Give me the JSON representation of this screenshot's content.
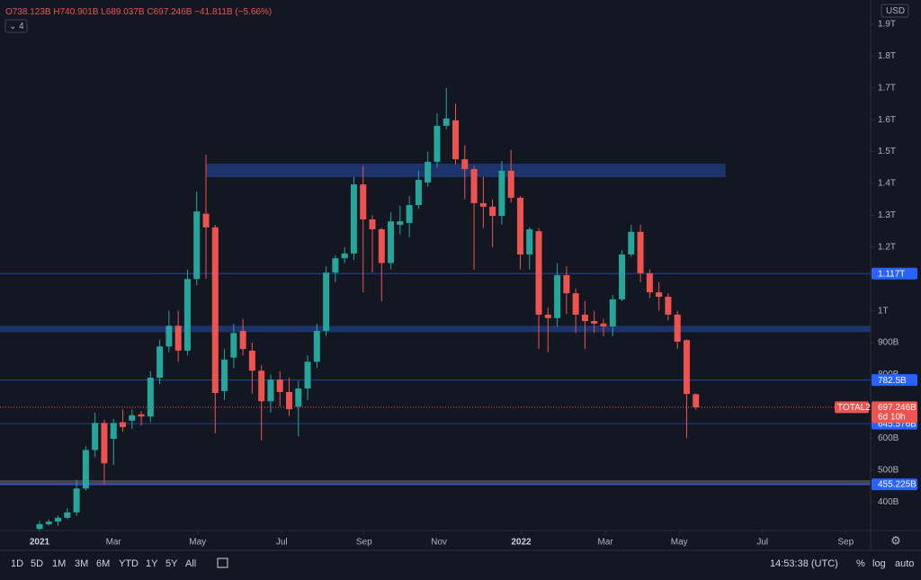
{
  "chart_data": {
    "type": "candlestick",
    "symbol": "TOTAL2",
    "header": {
      "open": "O738.123B",
      "high": "H740.901B",
      "low": "L689.037B",
      "close": "C697.246B",
      "change": "−41.811B (−5.66%)",
      "indicators": "4"
    },
    "currency": "USD",
    "up_color": "#26a69a",
    "down_color": "#ef5350",
    "open": [
      315,
      330,
      338,
      350,
      367,
      442,
      563,
      648,
      598,
      650,
      655,
      675,
      668,
      790,
      888,
      953,
      875,
      1100,
      1305,
      1262,
      748,
      853,
      937,
      875,
      812,
      716,
      784,
      745,
      699,
      756,
      840,
      937,
      1120,
      1165,
      1180,
      1397,
      1287,
      1256,
      1150,
      1270,
      1276,
      1332,
      1403,
      1468,
      1581,
      1598,
      1476,
      1445,
      1338,
      1327,
      1298,
      1440,
      1355,
      1177,
      1250,
      988,
      977,
      1112,
      1055,
      988,
      968,
      960,
      951,
      1036,
      1177,
      1248,
      1118,
      1058,
      1044,
      988,
      908,
      738.123
    ],
    "high": [
      340,
      345,
      357,
      380,
      470,
      575,
      680,
      658,
      660,
      690,
      690,
      685,
      810,
      910,
      1000,
      1000,
      1130,
      1375,
      1490,
      1270,
      880,
      960,
      975,
      900,
      830,
      800,
      810,
      790,
      780,
      860,
      960,
      1140,
      1175,
      1200,
      1420,
      1455,
      1300,
      1260,
      1310,
      1330,
      1360,
      1440,
      1500,
      1620,
      1700,
      1650,
      1520,
      1455,
      1420,
      1350,
      1470,
      1505,
      1360,
      1262,
      1260,
      1010,
      1150,
      1140,
      1070,
      1030,
      1000,
      975,
      1050,
      1190,
      1270,
      1270,
      1130,
      1090,
      1055,
      1000,
      910,
      740.901
    ],
    "low": [
      310,
      325,
      325,
      345,
      355,
      436,
      540,
      456,
      515,
      620,
      630,
      640,
      650,
      770,
      870,
      840,
      860,
      1080,
      1100,
      615,
      720,
      820,
      860,
      740,
      592,
      680,
      700,
      670,
      606,
      720,
      820,
      920,
      1090,
      1150,
      1160,
      1058,
      1120,
      1030,
      1130,
      1240,
      1230,
      1320,
      1390,
      1450,
      1570,
      1460,
      1350,
      1129,
      1260,
      1200,
      1270,
      1340,
      1130,
      1130,
      880,
      870,
      950,
      990,
      930,
      880,
      930,
      920,
      920,
      1030,
      1170,
      1090,
      1040,
      1000,
      970,
      880,
      600,
      689.037
    ],
    "close": [
      330,
      338,
      350,
      367,
      442,
      563,
      648,
      521,
      648,
      635,
      672,
      668,
      790,
      888,
      953,
      875,
      1100,
      1312,
      1262,
      742,
      847,
      930,
      880,
      812,
      716,
      784,
      745,
      691,
      756,
      840,
      937,
      1120,
      1165,
      1180,
      1397,
      1287,
      1256,
      1150,
      1281,
      1281,
      1332,
      1411,
      1468,
      1581,
      1604,
      1476,
      1445,
      1338,
      1327,
      1298,
      1440,
      1355,
      1177,
      1256,
      988,
      977,
      1112,
      1055,
      988,
      968,
      960,
      951,
      1036,
      1177,
      1248,
      1118,
      1058,
      1044,
      988,
      903,
      739,
      697.246
    ],
    "xlim": [
      -4.28,
      89.9
    ],
    "xticks": [
      {
        "value": 0,
        "label": "2021"
      },
      {
        "value": 8.0,
        "label": "Mar"
      },
      {
        "value": 17.1,
        "label": "May"
      },
      {
        "value": 26.2,
        "label": "Jul"
      },
      {
        "value": 35.1,
        "label": "Sep"
      },
      {
        "value": 43.2,
        "label": "Nov"
      },
      {
        "value": 52.1,
        "label": "2022"
      },
      {
        "value": 61.2,
        "label": "Mar"
      },
      {
        "value": 69.2,
        "label": "May"
      },
      {
        "value": 78.2,
        "label": "Jul"
      },
      {
        "value": 87.2,
        "label": "Sep"
      }
    ],
    "ylim": [
      310,
      1976
    ],
    "yticks": [
      {
        "value": 1900,
        "label": "1.9T"
      },
      {
        "value": 1800,
        "label": "1.8T"
      },
      {
        "value": 1700,
        "label": "1.7T"
      },
      {
        "value": 1600,
        "label": "1.6T"
      },
      {
        "value": 1500,
        "label": "1.5T"
      },
      {
        "value": 1400,
        "label": "1.4T"
      },
      {
        "value": 1300,
        "label": "1.3T"
      },
      {
        "value": 1200,
        "label": "1.2T"
      },
      {
        "value": 1000,
        "label": "1T"
      },
      {
        "value": 900,
        "label": "900B"
      },
      {
        "value": 800,
        "label": "800B"
      },
      {
        "value": 600,
        "label": "600B"
      },
      {
        "value": 500,
        "label": "500B"
      },
      {
        "value": 400,
        "label": "400B"
      }
    ],
    "zones": [
      {
        "from": 1420,
        "to": 1462,
        "start": 18,
        "end": 74.2,
        "color": "#1e3a78"
      },
      {
        "from": 933,
        "to": 953,
        "color": "#1e3a78"
      },
      {
        "from": 452,
        "to": 468,
        "color": "#4a4d57"
      }
    ],
    "levels": [
      {
        "value": 1117,
        "label": "1.117T",
        "color": "#2962ff"
      },
      {
        "value": 782.5,
        "label": "782.5B",
        "color": "#2962ff"
      },
      {
        "value": 645.576,
        "label": "645.576B",
        "color": "#2962ff"
      },
      {
        "value": 455.225,
        "label": "455.225B",
        "color": "#2962ff"
      }
    ],
    "last": {
      "value": 697.246,
      "label": "697.246B",
      "countdown": "6d 10h"
    }
  },
  "toolbar": {
    "ranges": [
      "1D",
      "5D",
      "1M",
      "3M",
      "6M",
      "YTD",
      "1Y",
      "5Y",
      "All"
    ],
    "time": "14:53:38 (UTC)",
    "percent": "%",
    "log": "log",
    "auto": "auto"
  }
}
